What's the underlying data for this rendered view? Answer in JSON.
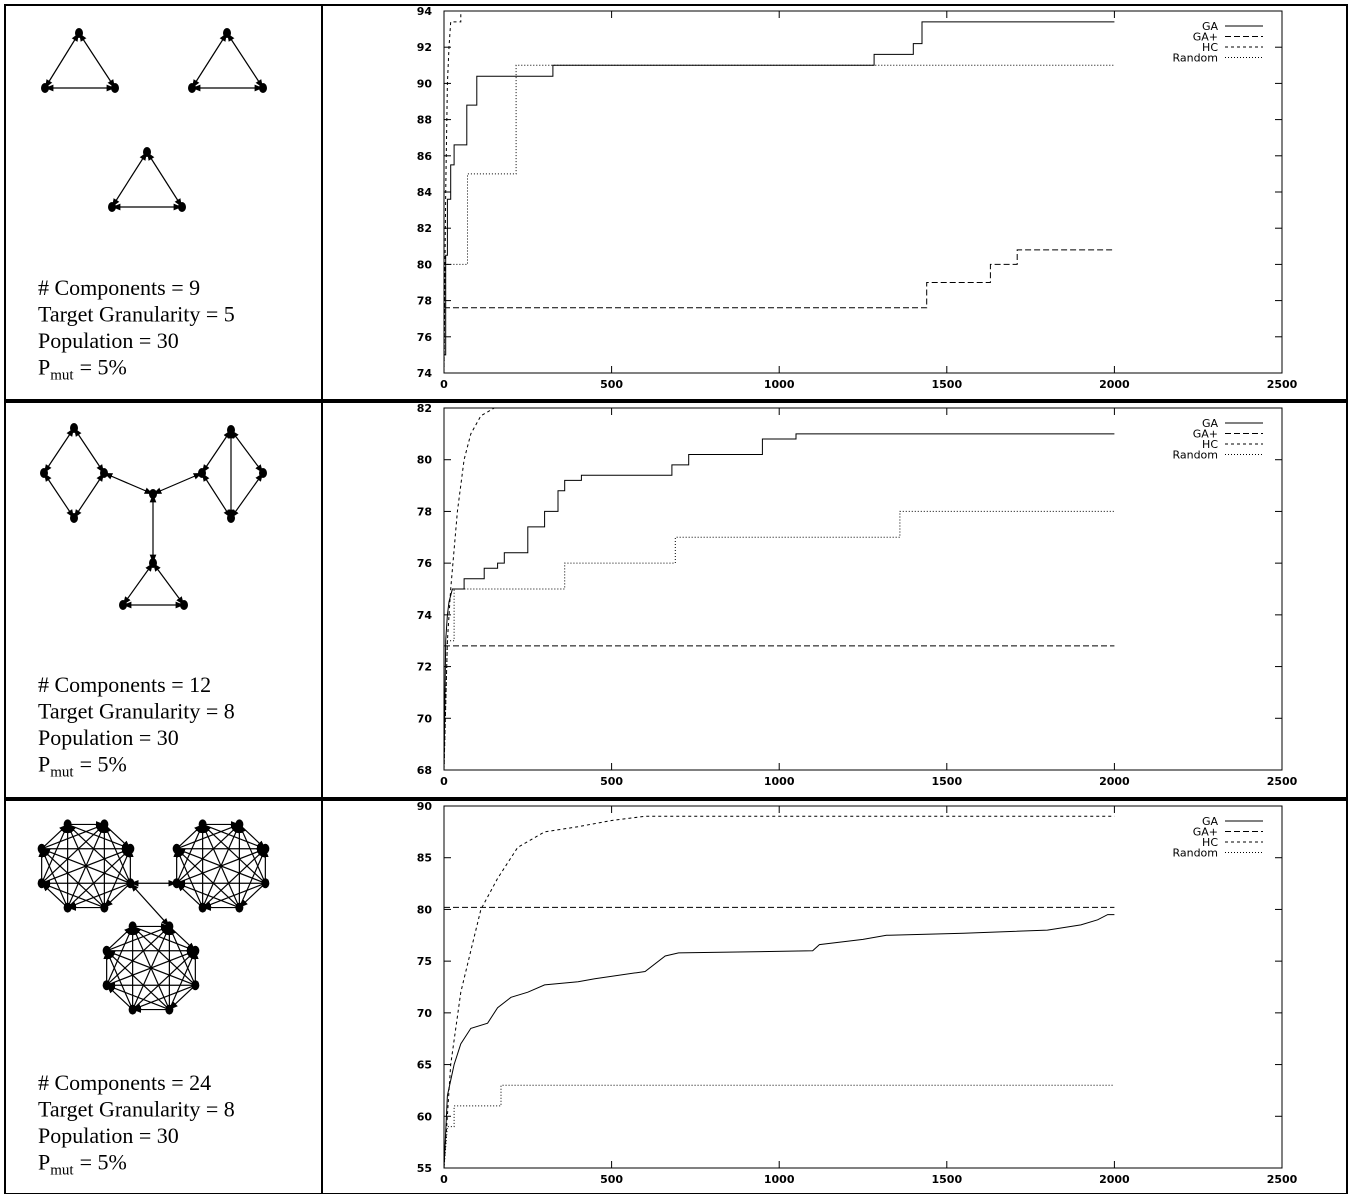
{
  "panels": [
    {
      "lines": [
        "# Components = 9",
        "Target Granularity = 5",
        "Population = 30"
      ],
      "pmut": {
        "symbol": "P",
        "subscript": "mut",
        "value": "= 5%"
      }
    },
    {
      "lines": [
        "# Components = 12",
        "Target Granularity = 8",
        "Population = 30"
      ],
      "pmut": {
        "symbol": "P",
        "subscript": "mut",
        "value": "= 5%"
      }
    },
    {
      "lines": [
        "# Components = 24",
        "Target Granularity = 8",
        "Population = 30"
      ],
      "pmut": {
        "symbol": "P",
        "subscript": "mut",
        "value": "= 5%"
      }
    }
  ],
  "chart_data": [
    {
      "type": "line",
      "xlim": [
        0,
        2500
      ],
      "xticks": [
        0,
        500,
        1000,
        1500,
        2000,
        2500
      ],
      "ylim": [
        74,
        94
      ],
      "yticks": [
        74,
        76,
        78,
        80,
        82,
        84,
        86,
        88,
        90,
        92,
        94
      ],
      "legend": "top-right",
      "series": [
        {
          "name": "GA",
          "color": "#000000",
          "dash": "none",
          "x": [
            0,
            5,
            5,
            10,
            10,
            20,
            20,
            30,
            30,
            68,
            68,
            98,
            98,
            325,
            325,
            1283,
            1283,
            1400,
            1400,
            1426,
            1426,
            2000
          ],
          "values": [
            75,
            75,
            80.5,
            80.5,
            83.6,
            83.6,
            85.5,
            85.5,
            86.6,
            86.6,
            88.8,
            88.8,
            90.4,
            90.4,
            91,
            91,
            91.6,
            91.6,
            92.2,
            92.2,
            93.4,
            93.4
          ]
        },
        {
          "name": "GA+",
          "color": "#000000",
          "dash": "6,3",
          "x": [
            0,
            1440,
            1440,
            1630,
            1630,
            1710,
            1710,
            2000
          ],
          "values": [
            77.6,
            77.6,
            79,
            79,
            80,
            80,
            80.8,
            80.8
          ]
        },
        {
          "name": "HC",
          "color": "#000000",
          "dash": "3,3",
          "x": [
            0,
            5,
            10,
            15,
            20,
            50,
            50,
            2000
          ],
          "values": [
            74,
            84,
            90,
            92,
            93.4,
            93.4,
            94,
            94
          ]
        },
        {
          "name": "Random",
          "color": "#000000",
          "dash": "1,2",
          "x": [
            0,
            3,
            70,
            70,
            215,
            215,
            2000
          ],
          "values": [
            74,
            80,
            80,
            85,
            85,
            91,
            91
          ]
        }
      ]
    },
    {
      "type": "line",
      "xlim": [
        0,
        2500
      ],
      "xticks": [
        0,
        500,
        1000,
        1500,
        2000,
        2500
      ],
      "ylim": [
        68,
        82
      ],
      "yticks": [
        68,
        70,
        72,
        74,
        76,
        78,
        80,
        82
      ],
      "legend": "top-right",
      "series": [
        {
          "name": "GA",
          "color": "#000000",
          "dash": "none",
          "x": [
            0,
            5,
            10,
            15,
            25,
            60,
            60,
            120,
            120,
            160,
            160,
            180,
            180,
            250,
            250,
            300,
            300,
            340,
            340,
            360,
            360,
            410,
            410,
            680,
            680,
            730,
            730,
            950,
            950,
            1050,
            1050,
            2000
          ],
          "values": [
            68,
            73,
            74,
            74.5,
            75,
            75,
            75.4,
            75.4,
            75.8,
            75.8,
            76,
            76,
            76.4,
            76.4,
            77.4,
            77.4,
            78,
            78,
            78.8,
            78.8,
            79.2,
            79.2,
            79.4,
            79.4,
            79.8,
            79.8,
            80.2,
            80.2,
            80.8,
            80.8,
            81,
            81
          ]
        },
        {
          "name": "GA+",
          "color": "#000000",
          "dash": "6,3",
          "x": [
            0,
            2000
          ],
          "values": [
            72.8,
            72.8
          ]
        },
        {
          "name": "HC",
          "color": "#000000",
          "dash": "3,3",
          "x": [
            0,
            10,
            20,
            40,
            60,
            80,
            110,
            150,
            2000
          ],
          "values": [
            68,
            73,
            75,
            78,
            80,
            81,
            81.7,
            82,
            82
          ]
        },
        {
          "name": "Random",
          "color": "#000000",
          "dash": "1,2",
          "x": [
            0,
            10,
            30,
            30,
            360,
            360,
            690,
            690,
            1360,
            1360,
            2000
          ],
          "values": [
            68,
            73,
            73,
            75,
            75,
            76,
            76,
            77,
            77,
            78,
            78
          ]
        }
      ]
    },
    {
      "type": "line",
      "xlim": [
        0,
        2500
      ],
      "xticks": [
        0,
        500,
        1000,
        1500,
        2000,
        2500
      ],
      "ylim": [
        55,
        90
      ],
      "yticks": [
        55,
        60,
        65,
        70,
        75,
        80,
        85,
        90
      ],
      "legend": "top-right",
      "series": [
        {
          "name": "GA",
          "color": "#000000",
          "dash": "none",
          "x": [
            0,
            10,
            30,
            50,
            80,
            130,
            160,
            200,
            250,
            300,
            400,
            450,
            600,
            660,
            700,
            1100,
            1120,
            1250,
            1320,
            1550,
            1800,
            1900,
            1950,
            1980,
            2000
          ],
          "values": [
            55,
            62,
            65,
            67,
            68.5,
            69,
            70.5,
            71.5,
            72,
            72.7,
            73,
            73.3,
            74,
            75.5,
            75.8,
            76,
            76.6,
            77.1,
            77.5,
            77.7,
            78,
            78.5,
            79,
            79.5,
            79.5
          ]
        },
        {
          "name": "GA+",
          "color": "#000000",
          "dash": "6,3",
          "x": [
            0,
            2000
          ],
          "values": [
            80.2,
            80.2
          ]
        },
        {
          "name": "HC",
          "color": "#000000",
          "dash": "3,3",
          "x": [
            0,
            20,
            50,
            80,
            110,
            160,
            220,
            300,
            400,
            500,
            600,
            2000
          ],
          "values": [
            55,
            65,
            72,
            76,
            80,
            83,
            86,
            87.5,
            88,
            88.6,
            89,
            89
          ]
        },
        {
          "name": "Random",
          "color": "#000000",
          "dash": "1,2",
          "x": [
            0,
            10,
            30,
            30,
            170,
            170,
            2000
          ],
          "values": [
            55,
            59,
            59,
            61,
            61,
            63,
            63
          ]
        }
      ]
    }
  ]
}
